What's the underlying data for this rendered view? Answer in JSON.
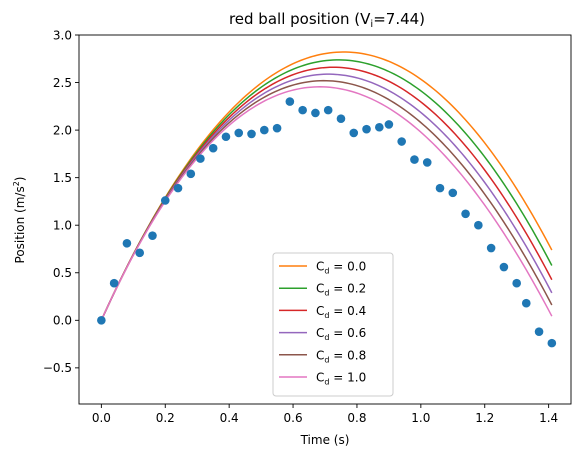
{
  "chart_data": {
    "type": "line",
    "title_main": "red ball position (V",
    "title_sub": "i",
    "title_tail": "=7.44)",
    "xlabel": "Time (s)",
    "ylabel_main": "Position (m/s",
    "ylabel_sup": "2",
    "ylabel_tail": ")",
    "xlim": [
      -0.07,
      1.47
    ],
    "ylim": [
      -0.88,
      3.0
    ],
    "xticks": [
      0.0,
      0.2,
      0.4,
      0.6,
      0.8,
      1.0,
      1.2,
      1.4
    ],
    "xtick_labels": [
      "0.0",
      "0.2",
      "0.4",
      "0.6",
      "0.8",
      "1.0",
      "1.2",
      "1.4"
    ],
    "yticks": [
      -0.5,
      0.0,
      0.5,
      1.0,
      1.5,
      2.0,
      2.5,
      3.0
    ],
    "ytick_labels": [
      "−0.5",
      "0.0",
      "0.5",
      "1.0",
      "1.5",
      "2.0",
      "2.5",
      "3.0"
    ],
    "grid": false,
    "legend_position": "lower-center",
    "scatter": {
      "color": "#1f77b4",
      "x": [
        0.0,
        0.04,
        0.08,
        0.12,
        0.16,
        0.2,
        0.24,
        0.28,
        0.31,
        0.35,
        0.39,
        0.43,
        0.47,
        0.51,
        0.55,
        0.59,
        0.63,
        0.67,
        0.71,
        0.75,
        0.79,
        0.83,
        0.87,
        0.9,
        0.94,
        0.98,
        1.02,
        1.06,
        1.1,
        1.14,
        1.18,
        1.22,
        1.26,
        1.3,
        1.33,
        1.37,
        1.41
      ],
      "y": [
        0.0,
        0.39,
        0.81,
        0.71,
        0.89,
        1.26,
        1.39,
        1.54,
        1.7,
        1.81,
        1.93,
        1.97,
        1.96,
        2.0,
        2.02,
        2.3,
        2.21,
        2.18,
        2.21,
        2.12,
        1.97,
        2.01,
        2.03,
        2.06,
        1.88,
        1.69,
        1.66,
        1.39,
        1.34,
        1.12,
        1.0,
        0.76,
        0.56,
        0.39,
        0.18,
        -0.12,
        -0.24
      ]
    },
    "series": [
      {
        "name_base": "C",
        "name_sub": "d",
        "name_value": " = 0.0",
        "color": "#ff7f0e",
        "v0": 7.44,
        "g": 9.81,
        "k": 0.0
      },
      {
        "name_base": "C",
        "name_sub": "d",
        "name_value": " = 0.2",
        "color": "#2ca02c",
        "v0": 7.44,
        "g": 9.81,
        "k": 0.06
      },
      {
        "name_base": "C",
        "name_sub": "d",
        "name_value": " = 0.4",
        "color": "#d62728",
        "v0": 7.44,
        "g": 9.81,
        "k": 0.12
      },
      {
        "name_base": "C",
        "name_sub": "d",
        "name_value": " = 0.6",
        "color": "#9467bd",
        "v0": 7.44,
        "g": 9.81,
        "k": 0.18
      },
      {
        "name_base": "C",
        "name_sub": "d",
        "name_value": " = 0.8",
        "color": "#8c564b",
        "v0": 7.44,
        "g": 9.81,
        "k": 0.24
      },
      {
        "name_base": "C",
        "name_sub": "d",
        "name_value": " = 1.0",
        "color": "#e377c2",
        "v0": 7.44,
        "g": 9.81,
        "k": 0.3
      }
    ],
    "x_end": 1.41
  }
}
